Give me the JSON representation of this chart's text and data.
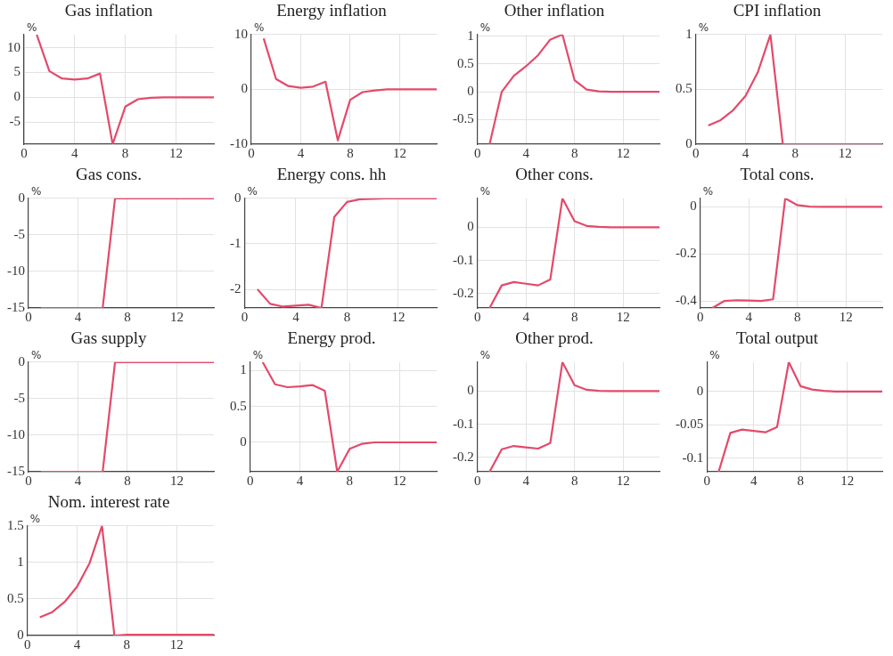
{
  "chart_data": [
    {
      "type": "line",
      "title": "Gas inflation",
      "ylabel": "%",
      "x": [
        1,
        2,
        3,
        4,
        5,
        6,
        7,
        8,
        9,
        10,
        11,
        12,
        13,
        14,
        15
      ],
      "xlim": [
        0,
        15
      ],
      "xticks": [
        0,
        4,
        8,
        12
      ],
      "ylim": [
        -9.5,
        12.7
      ],
      "yticks": [
        -5,
        0,
        5,
        10
      ],
      "grid": true,
      "marker": "none",
      "series": [
        {
          "color": "#e34a6b",
          "values": [
            12.7,
            5.3,
            3.8,
            3.6,
            3.8,
            4.8,
            -9.5,
            -1.9,
            -0.4,
            -0.1,
            0,
            0,
            0,
            0,
            0
          ]
        }
      ]
    },
    {
      "type": "line",
      "title": "Energy inflation",
      "ylabel": "%",
      "x": [
        1,
        2,
        3,
        4,
        5,
        6,
        7,
        8,
        9,
        10,
        11,
        12,
        13,
        14,
        15
      ],
      "xlim": [
        0,
        15
      ],
      "xticks": [
        0,
        4,
        8,
        12
      ],
      "ylim": [
        -10,
        10
      ],
      "yticks": [
        -10,
        0,
        10
      ],
      "grid": true,
      "marker": "none",
      "series": [
        {
          "color": "#e34a6b",
          "values": [
            9.3,
            1.9,
            0.6,
            0.3,
            0.5,
            1.4,
            -9.3,
            -1.9,
            -0.5,
            -0.2,
            0,
            0,
            0,
            0,
            0
          ]
        }
      ]
    },
    {
      "type": "line",
      "title": "Other inflation",
      "ylabel": "%",
      "x": [
        1,
        2,
        3,
        4,
        5,
        6,
        7,
        8,
        9,
        10,
        11,
        12,
        13,
        14,
        15
      ],
      "xlim": [
        0,
        15
      ],
      "xticks": [
        0,
        4,
        8,
        12
      ],
      "ylim": [
        -0.94,
        1.03
      ],
      "yticks": [
        -0.5,
        0,
        0.5,
        1
      ],
      "grid": true,
      "marker": "none",
      "series": [
        {
          "color": "#e34a6b",
          "values": [
            -0.94,
            0,
            0.29,
            0.46,
            0.66,
            0.94,
            1.03,
            0.21,
            0.04,
            0.01,
            0,
            0,
            0,
            0,
            0
          ]
        }
      ]
    },
    {
      "type": "line",
      "title": "CPI inflation",
      "ylabel": "%",
      "x": [
        1,
        2,
        3,
        4,
        5,
        6,
        7,
        8,
        9,
        10,
        11,
        12,
        13,
        14,
        15
      ],
      "xlim": [
        0,
        15
      ],
      "xticks": [
        0,
        4,
        8,
        12
      ],
      "ylim": [
        0,
        1
      ],
      "yticks": [
        0,
        0.5,
        1
      ],
      "grid": true,
      "marker": "none",
      "series": [
        {
          "color": "#e34a6b",
          "values": [
            0.17,
            0.22,
            0.31,
            0.44,
            0.66,
            1,
            0,
            0,
            0,
            0,
            0,
            0,
            0,
            0,
            0
          ]
        }
      ]
    },
    {
      "type": "line",
      "title": "Gas cons.",
      "ylabel": "%",
      "x": [
        1,
        2,
        3,
        4,
        5,
        6,
        7,
        8,
        9,
        10,
        11,
        12,
        13,
        14,
        15
      ],
      "xlim": [
        0,
        15
      ],
      "xticks": [
        0,
        4,
        8,
        12
      ],
      "ylim": [
        -15,
        0
      ],
      "yticks": [
        -15,
        -10,
        -5,
        0
      ],
      "grid": true,
      "marker": "none",
      "series": [
        {
          "color": "#e34a6b",
          "values": [
            -15,
            -15,
            -15,
            -15,
            -15,
            -15,
            0,
            0,
            0,
            0,
            0,
            0,
            0,
            0,
            0
          ]
        }
      ]
    },
    {
      "type": "line",
      "title": "Energy cons. hh",
      "ylabel": "%",
      "x": [
        1,
        2,
        3,
        4,
        5,
        6,
        7,
        8,
        9,
        10,
        11,
        12,
        13,
        14,
        15
      ],
      "xlim": [
        0,
        15
      ],
      "xticks": [
        0,
        4,
        8,
        12
      ],
      "ylim": [
        -2.41,
        0
      ],
      "yticks": [
        -2,
        -1,
        0
      ],
      "grid": true,
      "marker": "none",
      "series": [
        {
          "color": "#e34a6b",
          "values": [
            -2.0,
            -2.32,
            -2.38,
            -2.36,
            -2.34,
            -2.41,
            -0.41,
            -0.08,
            -0.02,
            -0.01,
            0,
            0,
            0,
            0,
            0
          ]
        }
      ]
    },
    {
      "type": "line",
      "title": "Other cons.",
      "ylabel": "%",
      "x": [
        1,
        2,
        3,
        4,
        5,
        6,
        7,
        8,
        9,
        10,
        11,
        12,
        13,
        14,
        15
      ],
      "xlim": [
        0,
        15
      ],
      "xticks": [
        0,
        4,
        8,
        12
      ],
      "ylim": [
        -0.243,
        0.087
      ],
      "yticks": [
        -0.2,
        -0.1,
        0
      ],
      "grid": true,
      "marker": "none",
      "series": [
        {
          "color": "#e34a6b",
          "values": [
            -0.243,
            -0.175,
            -0.165,
            -0.17,
            -0.175,
            -0.157,
            0.087,
            0.018,
            0.004,
            0.001,
            0,
            0,
            0,
            0,
            0
          ]
        }
      ]
    },
    {
      "type": "line",
      "title": "Total cons.",
      "ylabel": "%",
      "x": [
        1,
        2,
        3,
        4,
        5,
        6,
        7,
        8,
        9,
        10,
        11,
        12,
        13,
        14,
        15
      ],
      "xlim": [
        0,
        15
      ],
      "xticks": [
        0,
        4,
        8,
        12
      ],
      "ylim": [
        -0.43,
        0.036
      ],
      "yticks": [
        -0.4,
        -0.2,
        0
      ],
      "grid": true,
      "marker": "none",
      "series": [
        {
          "color": "#e34a6b",
          "values": [
            -0.43,
            -0.4,
            -0.397,
            -0.398,
            -0.4,
            -0.393,
            0.036,
            0.007,
            0.001,
            0,
            0,
            0,
            0,
            0,
            0
          ]
        }
      ]
    },
    {
      "type": "line",
      "title": "Gas supply",
      "ylabel": "%",
      "x": [
        1,
        2,
        3,
        4,
        5,
        6,
        7,
        8,
        9,
        10,
        11,
        12,
        13,
        14,
        15
      ],
      "xlim": [
        0,
        15
      ],
      "xticks": [
        0,
        4,
        8,
        12
      ],
      "ylim": [
        -15,
        0
      ],
      "yticks": [
        -15,
        -10,
        -5,
        0
      ],
      "grid": true,
      "marker": "none",
      "series": [
        {
          "color": "#e34a6b",
          "values": [
            -15,
            -15,
            -15,
            -15,
            -15,
            -15,
            0,
            0,
            0,
            0,
            0,
            0,
            0,
            0,
            0
          ]
        }
      ]
    },
    {
      "type": "line",
      "title": "Energy prod.",
      "ylabel": "%",
      "x": [
        1,
        2,
        3,
        4,
        5,
        6,
        7,
        8,
        9,
        10,
        11,
        12,
        13,
        14,
        15
      ],
      "xlim": [
        0,
        15
      ],
      "xticks": [
        0,
        4,
        8,
        12
      ],
      "ylim": [
        -0.41,
        1.12
      ],
      "yticks": [
        0,
        0.5,
        1
      ],
      "grid": true,
      "marker": "none",
      "series": [
        {
          "color": "#e34a6b",
          "values": [
            1.12,
            0.81,
            0.77,
            0.78,
            0.8,
            0.72,
            -0.41,
            -0.09,
            -0.02,
            0,
            0,
            0,
            0,
            0,
            0
          ]
        }
      ]
    },
    {
      "type": "line",
      "title": "Other prod.",
      "ylabel": "%",
      "x": [
        1,
        2,
        3,
        4,
        5,
        6,
        7,
        8,
        9,
        10,
        11,
        12,
        13,
        14,
        15
      ],
      "xlim": [
        0,
        15
      ],
      "xticks": [
        0,
        4,
        8,
        12
      ],
      "ylim": [
        -0.244,
        0.088
      ],
      "yticks": [
        -0.2,
        -0.1,
        0
      ],
      "grid": true,
      "marker": "none",
      "series": [
        {
          "color": "#e34a6b",
          "values": [
            -0.244,
            -0.176,
            -0.166,
            -0.17,
            -0.174,
            -0.157,
            0.088,
            0.018,
            0.004,
            0.001,
            0,
            0,
            0,
            0,
            0
          ]
        }
      ]
    },
    {
      "type": "line",
      "title": "Total output",
      "ylabel": "%",
      "x": [
        1,
        2,
        3,
        4,
        5,
        6,
        7,
        8,
        9,
        10,
        11,
        12,
        13,
        14,
        15
      ],
      "xlim": [
        0,
        15
      ],
      "xticks": [
        0,
        4,
        8,
        12
      ],
      "ylim": [
        -0.12,
        0.044
      ],
      "yticks": [
        -0.1,
        -0.05,
        0
      ],
      "grid": true,
      "marker": "none",
      "series": [
        {
          "color": "#e34a6b",
          "values": [
            -0.12,
            -0.062,
            -0.057,
            -0.059,
            -0.061,
            -0.053,
            0.044,
            0.008,
            0.003,
            0.001,
            0,
            0,
            0,
            0,
            0
          ]
        }
      ]
    },
    {
      "type": "line",
      "title": "Nom. interest rate",
      "ylabel": "%",
      "x": [
        1,
        2,
        3,
        4,
        5,
        6,
        7,
        8,
        9,
        10,
        11,
        12,
        13,
        14,
        15
      ],
      "xlim": [
        0,
        15
      ],
      "xticks": [
        0,
        4,
        8,
        12
      ],
      "ylim": [
        0,
        1.5
      ],
      "yticks": [
        0,
        0.5,
        1,
        1.5
      ],
      "grid": true,
      "marker": "none",
      "series": [
        {
          "color": "#e34a6b",
          "values": [
            0.25,
            0.32,
            0.46,
            0.67,
            0.99,
            1.5,
            0,
            0.01,
            0.01,
            0.01,
            0.01,
            0.01,
            0.01,
            0.01,
            0.01
          ]
        }
      ]
    }
  ]
}
